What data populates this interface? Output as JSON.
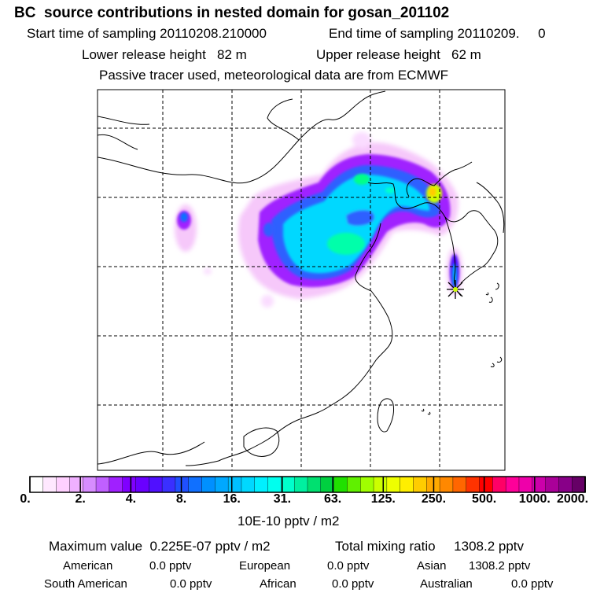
{
  "header": {
    "title": "BC  source contributions in nested domain for gosan_201102",
    "start_time": "Start time of sampling 20110208.210000",
    "end_time": "End time of sampling 20110209.     0",
    "lower_release": "Lower release height   82 m",
    "upper_release": "Upper release height   62 m",
    "tracer_note": "Passive tracer used, meteorological data are from ECMWF"
  },
  "colorbar": {
    "ticks": [
      "0.",
      "2.",
      "4.",
      "8.",
      "16.",
      "31.",
      "63.",
      "125.",
      "250.",
      "500.",
      "1000.",
      "2000."
    ],
    "colors": [
      "#ffffff",
      "#ffe8ff",
      "#ffd0ff",
      "#f0b0ff",
      "#d78cff",
      "#c060ff",
      "#a020ff",
      "#8000ff",
      "#6a00ff",
      "#5010ff",
      "#3a30ff",
      "#2050ff",
      "#1070ff",
      "#0090ff",
      "#00a8ff",
      "#00c0ff",
      "#00d8ff",
      "#00f0ff",
      "#00ffee",
      "#00ffcc",
      "#00f0a0",
      "#00e070",
      "#00d040",
      "#20e000",
      "#60f000",
      "#a0ff00",
      "#ccff00",
      "#eeff00",
      "#ffee00",
      "#ffcc00",
      "#ffaa00",
      "#ff8800",
      "#ff6600",
      "#ff3300",
      "#ff0000",
      "#ff0066",
      "#ff0099",
      "#ee00aa",
      "#cc00aa",
      "#aa0099",
      "#880088",
      "#660066"
    ],
    "units": "10E-10 pptv / m2"
  },
  "summary": {
    "max_value": "Maximum value  0.225E-07 pptv / m2",
    "total_mixing": "Total mixing ratio     1308.2 pptv",
    "american_label": "American",
    "american_value": "0.0 pptv",
    "european_label": "European",
    "european_value": "0.0 pptv",
    "asian_label": "Asian",
    "asian_value": "1308.2 pptv",
    "south_american_label": "South American",
    "south_american_value": "0.0 pptv",
    "african_label": "African",
    "african_value": "0.0 pptv",
    "australian_label": "Australian",
    "australian_value": "0.0 pptv"
  },
  "map": {
    "receptor_marker": "asterisk-star-icon",
    "grid": "dashed"
  }
}
